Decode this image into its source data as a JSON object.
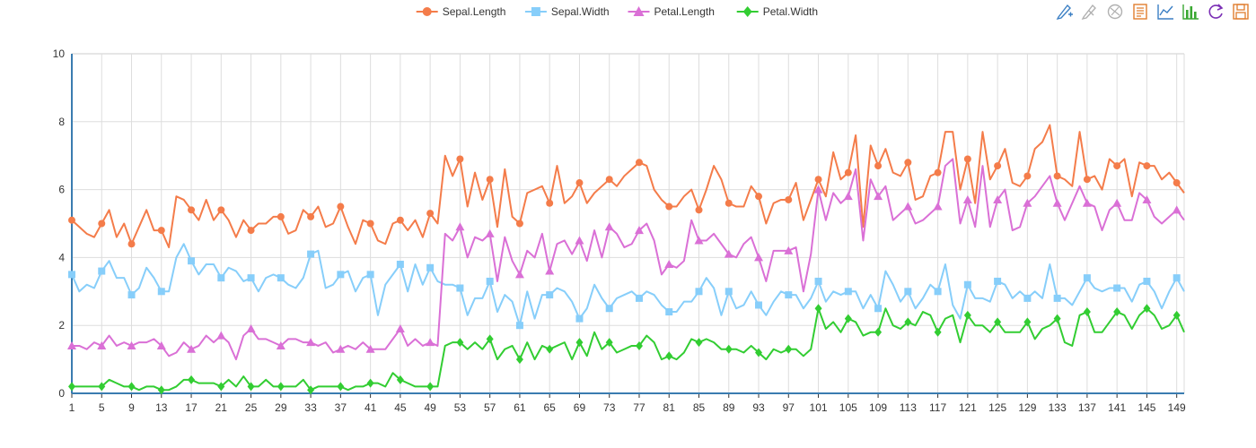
{
  "toolbox": [
    {
      "name": "mark-icon",
      "color": "#3b7fc4"
    },
    {
      "name": "mark-undo-icon",
      "color": "#b0b0b0"
    },
    {
      "name": "mark-clear-icon",
      "color": "#b0b0b0"
    },
    {
      "name": "data-view-icon",
      "color": "#e07d2e"
    },
    {
      "name": "line-chart-icon",
      "color": "#3b7fc4"
    },
    {
      "name": "bar-chart-icon",
      "color": "#3aa832"
    },
    {
      "name": "restore-icon",
      "color": "#7b2fb5"
    },
    {
      "name": "save-image-icon",
      "color": "#e07d2e"
    }
  ],
  "chart_data": {
    "type": "line",
    "title": "",
    "xlabel": "",
    "ylabel": "",
    "ylim": [
      0,
      10
    ],
    "yticks": [
      "0",
      "2",
      "4",
      "6",
      "8",
      "10"
    ],
    "xticks": [
      "1",
      "5",
      "9",
      "13",
      "17",
      "21",
      "25",
      "29",
      "33",
      "37",
      "41",
      "45",
      "49",
      "53",
      "57",
      "61",
      "65",
      "69",
      "73",
      "77",
      "81",
      "85",
      "89",
      "93",
      "97",
      "101",
      "105",
      "109",
      "113",
      "117",
      "121",
      "125",
      "129",
      "133",
      "137",
      "141",
      "145",
      "149"
    ],
    "x_start": 1,
    "x_end": 150,
    "legend_position": "top-center",
    "grid": true,
    "series": [
      {
        "name": "Sepal.Length",
        "color": "#f47c4a",
        "symbol": "circle",
        "values": [
          5.1,
          4.9,
          4.7,
          4.6,
          5.0,
          5.4,
          4.6,
          5.0,
          4.4,
          4.9,
          5.4,
          4.8,
          4.8,
          4.3,
          5.8,
          5.7,
          5.4,
          5.1,
          5.7,
          5.1,
          5.4,
          5.1,
          4.6,
          5.1,
          4.8,
          5.0,
          5.0,
          5.2,
          5.2,
          4.7,
          4.8,
          5.4,
          5.2,
          5.5,
          4.9,
          5.0,
          5.5,
          4.9,
          4.4,
          5.1,
          5.0,
          4.5,
          4.4,
          5.0,
          5.1,
          4.8,
          5.1,
          4.6,
          5.3,
          5.0,
          7.0,
          6.4,
          6.9,
          5.5,
          6.5,
          5.7,
          6.3,
          4.9,
          6.6,
          5.2,
          5.0,
          5.9,
          6.0,
          6.1,
          5.6,
          6.7,
          5.6,
          5.8,
          6.2,
          5.6,
          5.9,
          6.1,
          6.3,
          6.1,
          6.4,
          6.6,
          6.8,
          6.7,
          6.0,
          5.7,
          5.5,
          5.5,
          5.8,
          6.0,
          5.4,
          6.0,
          6.7,
          6.3,
          5.6,
          5.5,
          5.5,
          6.1,
          5.8,
          5.0,
          5.6,
          5.7,
          5.7,
          6.2,
          5.1,
          5.7,
          6.3,
          5.8,
          7.1,
          6.3,
          6.5,
          7.6,
          4.9,
          7.3,
          6.7,
          7.2,
          6.5,
          6.4,
          6.8,
          5.7,
          5.8,
          6.4,
          6.5,
          7.7,
          7.7,
          6.0,
          6.9,
          5.6,
          7.7,
          6.3,
          6.7,
          7.2,
          6.2,
          6.1,
          6.4,
          7.2,
          7.4,
          7.9,
          6.4,
          6.3,
          6.1,
          7.7,
          6.3,
          6.4,
          6.0,
          6.9,
          6.7,
          6.9,
          5.8,
          6.8,
          6.7,
          6.7,
          6.3,
          6.5,
          6.2,
          5.9
        ]
      },
      {
        "name": "Sepal.Width",
        "color": "#87cefa",
        "symbol": "rect",
        "values": [
          3.5,
          3.0,
          3.2,
          3.1,
          3.6,
          3.9,
          3.4,
          3.4,
          2.9,
          3.1,
          3.7,
          3.4,
          3.0,
          3.0,
          4.0,
          4.4,
          3.9,
          3.5,
          3.8,
          3.8,
          3.4,
          3.7,
          3.6,
          3.3,
          3.4,
          3.0,
          3.4,
          3.5,
          3.4,
          3.2,
          3.1,
          3.4,
          4.1,
          4.2,
          3.1,
          3.2,
          3.5,
          3.6,
          3.0,
          3.4,
          3.5,
          2.3,
          3.2,
          3.5,
          3.8,
          3.0,
          3.8,
          3.2,
          3.7,
          3.3,
          3.2,
          3.2,
          3.1,
          2.3,
          2.8,
          2.8,
          3.3,
          2.4,
          2.9,
          2.7,
          2.0,
          3.0,
          2.2,
          2.9,
          2.9,
          3.1,
          3.0,
          2.7,
          2.2,
          2.5,
          3.2,
          2.8,
          2.5,
          2.8,
          2.9,
          3.0,
          2.8,
          3.0,
          2.9,
          2.6,
          2.4,
          2.4,
          2.7,
          2.7,
          3.0,
          3.4,
          3.1,
          2.3,
          3.0,
          2.5,
          2.6,
          3.0,
          2.6,
          2.3,
          2.7,
          3.0,
          2.9,
          2.9,
          2.5,
          2.8,
          3.3,
          2.7,
          3.0,
          2.9,
          3.0,
          3.0,
          2.5,
          2.9,
          2.5,
          3.6,
          3.2,
          2.7,
          3.0,
          2.5,
          2.8,
          3.2,
          3.0,
          3.8,
          2.6,
          2.2,
          3.2,
          2.8,
          2.8,
          2.7,
          3.3,
          3.2,
          2.8,
          3.0,
          2.8,
          3.0,
          2.8,
          3.8,
          2.8,
          2.8,
          2.6,
          3.0,
          3.4,
          3.1,
          3.0,
          3.1,
          3.1,
          3.1,
          2.7,
          3.2,
          3.3,
          3.0,
          2.5,
          3.0,
          3.4,
          3.0
        ]
      },
      {
        "name": "Petal.Length",
        "color": "#da70d6",
        "symbol": "triangle",
        "values": [
          1.4,
          1.4,
          1.3,
          1.5,
          1.4,
          1.7,
          1.4,
          1.5,
          1.4,
          1.5,
          1.5,
          1.6,
          1.4,
          1.1,
          1.2,
          1.5,
          1.3,
          1.4,
          1.7,
          1.5,
          1.7,
          1.5,
          1.0,
          1.7,
          1.9,
          1.6,
          1.6,
          1.5,
          1.4,
          1.6,
          1.6,
          1.5,
          1.5,
          1.4,
          1.5,
          1.2,
          1.3,
          1.4,
          1.3,
          1.5,
          1.3,
          1.3,
          1.3,
          1.6,
          1.9,
          1.4,
          1.6,
          1.4,
          1.5,
          1.4,
          4.7,
          4.5,
          4.9,
          4.0,
          4.6,
          4.5,
          4.7,
          3.3,
          4.6,
          3.9,
          3.5,
          4.2,
          4.0,
          4.7,
          3.6,
          4.4,
          4.5,
          4.1,
          4.5,
          3.9,
          4.8,
          4.0,
          4.9,
          4.7,
          4.3,
          4.4,
          4.8,
          5.0,
          4.5,
          3.5,
          3.8,
          3.7,
          3.9,
          5.1,
          4.5,
          4.5,
          4.7,
          4.4,
          4.1,
          4.0,
          4.4,
          4.6,
          4.0,
          3.3,
          4.2,
          4.2,
          4.2,
          4.3,
          3.0,
          4.1,
          6.0,
          5.1,
          5.9,
          5.6,
          5.8,
          6.6,
          4.5,
          6.3,
          5.8,
          6.1,
          5.1,
          5.3,
          5.5,
          5.0,
          5.1,
          5.3,
          5.5,
          6.7,
          6.9,
          5.0,
          5.7,
          4.9,
          6.7,
          4.9,
          5.7,
          6.0,
          4.8,
          4.9,
          5.6,
          5.8,
          6.1,
          6.4,
          5.6,
          5.1,
          5.6,
          6.1,
          5.6,
          5.5,
          4.8,
          5.4,
          5.6,
          5.1,
          5.1,
          5.9,
          5.7,
          5.2,
          5.0,
          5.2,
          5.4,
          5.1
        ]
      },
      {
        "name": "Petal.Width",
        "color": "#32cd32",
        "symbol": "diamond",
        "values": [
          0.2,
          0.2,
          0.2,
          0.2,
          0.2,
          0.4,
          0.3,
          0.2,
          0.2,
          0.1,
          0.2,
          0.2,
          0.1,
          0.1,
          0.2,
          0.4,
          0.4,
          0.3,
          0.3,
          0.3,
          0.2,
          0.4,
          0.2,
          0.5,
          0.2,
          0.2,
          0.4,
          0.2,
          0.2,
          0.2,
          0.2,
          0.4,
          0.1,
          0.2,
          0.2,
          0.2,
          0.2,
          0.1,
          0.2,
          0.2,
          0.3,
          0.3,
          0.2,
          0.6,
          0.4,
          0.3,
          0.2,
          0.2,
          0.2,
          0.2,
          1.4,
          1.5,
          1.5,
          1.3,
          1.5,
          1.3,
          1.6,
          1.0,
          1.3,
          1.4,
          1.0,
          1.5,
          1.0,
          1.4,
          1.3,
          1.4,
          1.5,
          1.0,
          1.5,
          1.1,
          1.8,
          1.3,
          1.5,
          1.2,
          1.3,
          1.4,
          1.4,
          1.7,
          1.5,
          1.0,
          1.1,
          1.0,
          1.2,
          1.6,
          1.5,
          1.6,
          1.5,
          1.3,
          1.3,
          1.3,
          1.2,
          1.4,
          1.2,
          1.0,
          1.3,
          1.2,
          1.3,
          1.3,
          1.1,
          1.3,
          2.5,
          1.9,
          2.1,
          1.8,
          2.2,
          2.1,
          1.7,
          1.8,
          1.8,
          2.5,
          2.0,
          1.9,
          2.1,
          2.0,
          2.4,
          2.3,
          1.8,
          2.2,
          2.3,
          1.5,
          2.3,
          2.0,
          2.0,
          1.8,
          2.1,
          1.8,
          1.8,
          1.8,
          2.1,
          1.6,
          1.9,
          2.0,
          2.2,
          1.5,
          1.4,
          2.3,
          2.4,
          1.8,
          1.8,
          2.1,
          2.4,
          2.3,
          1.9,
          2.3,
          2.5,
          2.3,
          1.9,
          2.0,
          2.3,
          1.8
        ]
      }
    ]
  }
}
